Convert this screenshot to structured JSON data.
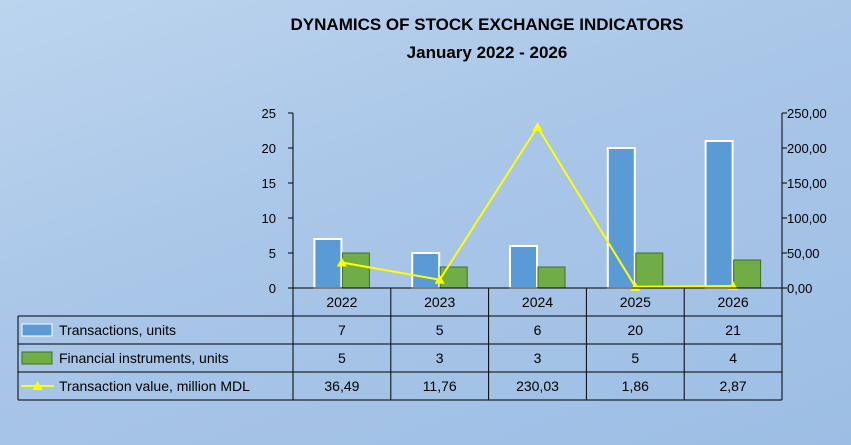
{
  "chart_data": {
    "type": "bar",
    "title": "DYNAMICS OF STOCK EXCHANGE INDICATORS",
    "subtitle": "January  2022 - 2026",
    "categories": [
      "2022",
      "2023",
      "2024",
      "2025",
      "2026"
    ],
    "ylim": [
      0,
      25
    ],
    "y_ticks": [
      "0",
      "5",
      "10",
      "15",
      "20",
      "25"
    ],
    "y2lim": [
      0,
      250
    ],
    "y2_ticks": [
      "0,00",
      "50,00",
      "100,00",
      "150,00",
      "200,00",
      "250,00"
    ],
    "legend_position": "bottom-table",
    "series": [
      {
        "name": "Transactions, units",
        "type": "bar",
        "axis": "left",
        "color": "#5b9bd5",
        "values": [
          7,
          5,
          6,
          20,
          21
        ],
        "labels": [
          "7",
          "5",
          "6",
          "20",
          "21"
        ]
      },
      {
        "name": "Financial instruments, units",
        "type": "bar",
        "axis": "left",
        "color": "#70ad47",
        "values": [
          5,
          3,
          3,
          5,
          4
        ],
        "labels": [
          "5",
          "3",
          "3",
          "5",
          "4"
        ]
      },
      {
        "name": "Transaction value, million MDL",
        "type": "line",
        "axis": "right",
        "color": "#ffff00",
        "values": [
          36.49,
          11.76,
          230.03,
          1.86,
          2.87
        ],
        "labels": [
          "36,49",
          "11,76",
          "230,03",
          "1,86",
          "2,87"
        ]
      }
    ]
  }
}
